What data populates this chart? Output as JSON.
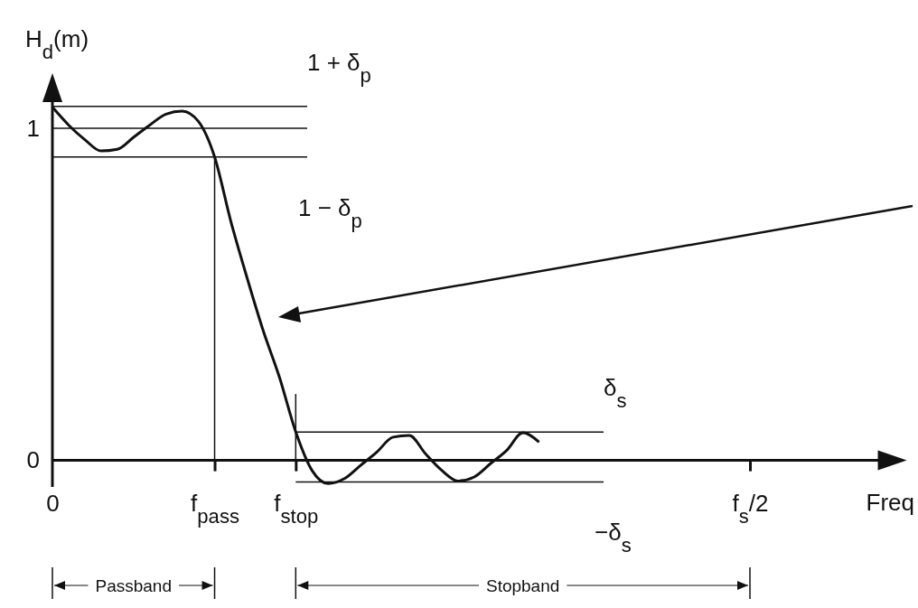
{
  "chart_data": {
    "type": "line",
    "ylabel": "H$_{d}$(m)",
    "xlabel": "Freq",
    "categories": [
      "0",
      null,
      null,
      null,
      null,
      null,
      null,
      null,
      null,
      null,
      "f$_{pass}$",
      null,
      null,
      null,
      null,
      "f$_{stop}$",
      null,
      null,
      null,
      null,
      null,
      null,
      null,
      null,
      null,
      null,
      null,
      null,
      null,
      null,
      null,
      null,
      null,
      null,
      null,
      null,
      null,
      null,
      null,
      null,
      null,
      null,
      null,
      "f$_{s}$/2",
      null,
      null,
      null,
      null,
      null,
      null,
      null,
      null,
      null
    ],
    "values": [
      1.064,
      1.01,
      0.966,
      0.932,
      0.937,
      0.973,
      1.01,
      1.043,
      1.052,
      1.021,
      0.914,
      0.72,
      0.55,
      0.39,
      0.25,
      0.086,
      -0.03,
      -0.07,
      -0.055,
      -0.015,
      0.025,
      0.07,
      0.075,
      0.02,
      -0.03,
      -0.062,
      -0.05,
      -0.01,
      0.03,
      0.083,
      0.055,
      null,
      null,
      null,
      null,
      null,
      null,
      null,
      null,
      null,
      null,
      null,
      null,
      null,
      null,
      null,
      null,
      null,
      null,
      null,
      null,
      null,
      null
    ],
    "color": "#111111",
    "line_style": "solid",
    "marker": "none",
    "ylim": [
      -0.08,
      1.15
    ],
    "yticks": [
      0,
      1
    ],
    "ref_lines": [
      {
        "axis": "y",
        "value": 1,
        "label": null
      },
      {
        "axis": "y",
        "value": 1.066,
        "label": "1 + δ$_{p}$"
      },
      {
        "axis": "y",
        "value": 0.914,
        "label": "1 − δ$_{p}$"
      },
      {
        "axis": "y",
        "value": 0.085,
        "label": "δ$_{s}$"
      },
      {
        "axis": "y",
        "value": -0.065,
        "label": "−δ$_{s}$"
      },
      {
        "axis": "x",
        "value": "f$_{pass}$",
        "label": null
      },
      {
        "axis": "x",
        "value": "f$_{stop}$",
        "label": null
      }
    ],
    "annotations": [
      "Passband",
      "Stopband"
    ]
  }
}
